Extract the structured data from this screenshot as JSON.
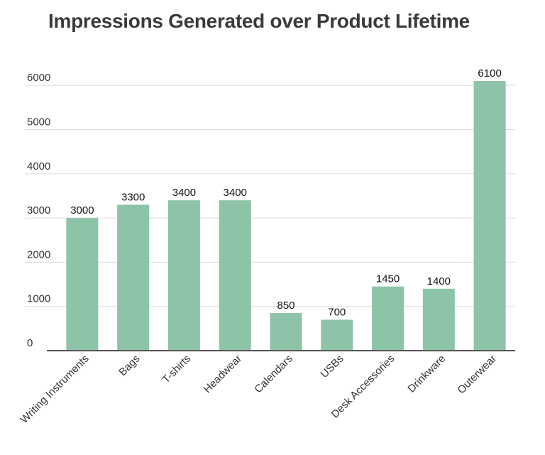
{
  "chart_data": {
    "type": "bar",
    "title": "Impressions Generated over Product Lifetime",
    "xlabel": "",
    "ylabel": "",
    "categories": [
      "Writing Instruments",
      "Bags",
      "T-shirts",
      "Headwear",
      "Calendars",
      "USBs",
      "Desk Accessories",
      "Drinkware",
      "Outerwear"
    ],
    "values": [
      3000,
      3300,
      3400,
      3400,
      850,
      700,
      1450,
      1400,
      6100
    ],
    "ylim": [
      0,
      6000
    ],
    "yticks": [
      0,
      1000,
      2000,
      3000,
      4000,
      5000,
      6000
    ],
    "grid": true,
    "legend": "none",
    "bar_color": "#8dc3a7",
    "grid_color": "#dddddd",
    "baseline_color": "#555555"
  }
}
